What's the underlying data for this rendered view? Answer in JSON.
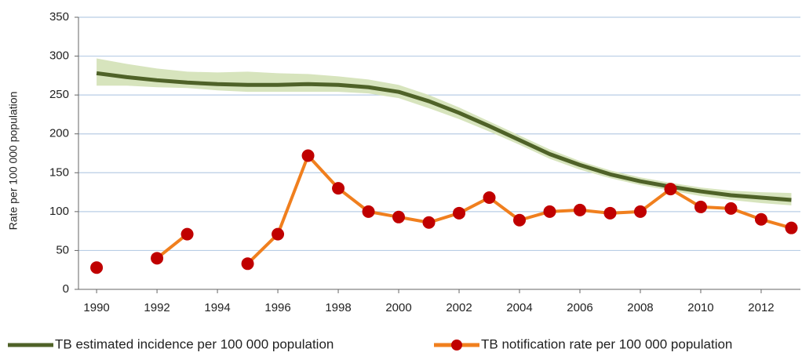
{
  "chart_data": {
    "type": "line",
    "y_label": "Rate per 100 000 population",
    "x": [
      1990,
      1991,
      1992,
      1993,
      1994,
      1995,
      1996,
      1997,
      1998,
      1999,
      2000,
      2001,
      2002,
      2003,
      2004,
      2005,
      2006,
      2007,
      2008,
      2009,
      2010,
      2011,
      2012,
      2013
    ],
    "series": [
      {
        "name": "TB estimated incidence per 100 000 population",
        "color": "#4f6228",
        "band_color": "#d7e4bd",
        "values": [
          278,
          273,
          269,
          266,
          264,
          263,
          263,
          264,
          263,
          260,
          254,
          242,
          227,
          210,
          192,
          174,
          160,
          148,
          139,
          132,
          126,
          121,
          118,
          115
        ],
        "low": [
          262,
          262,
          260,
          259,
          256,
          254,
          254,
          254,
          254,
          252,
          246,
          233,
          219,
          203,
          186,
          168,
          154,
          143,
          134,
          127,
          120,
          115,
          111,
          108
        ],
        "high": [
          297,
          290,
          284,
          280,
          279,
          280,
          278,
          277,
          274,
          270,
          263,
          250,
          234,
          216,
          198,
          180,
          165,
          153,
          144,
          137,
          131,
          127,
          125,
          124
        ]
      },
      {
        "name": "TB notification rate per 100 000 population",
        "color": "#f07f1e",
        "marker_color": "#c00000",
        "values": [
          28,
          null,
          40,
          71,
          null,
          33,
          71,
          172,
          130,
          100,
          93,
          86,
          98,
          118,
          89,
          100,
          102,
          98,
          100,
          129,
          106,
          104,
          90,
          79
        ]
      }
    ],
    "xlim": [
      1989.4,
      2013.3
    ],
    "xticks": [
      1990,
      1992,
      1994,
      1996,
      1998,
      2000,
      2002,
      2004,
      2006,
      2008,
      2010,
      2012
    ],
    "ylim": [
      0,
      350
    ],
    "yticks": [
      0,
      50,
      100,
      150,
      200,
      250,
      300,
      350
    ],
    "grid": true,
    "legend": "bottom"
  }
}
